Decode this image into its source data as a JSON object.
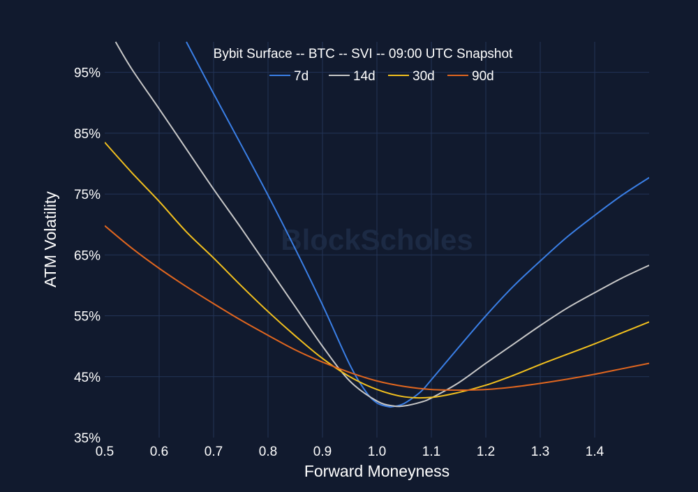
{
  "chart_data": {
    "type": "line",
    "title": "Bybit Surface -- BTC -- SVI -- 09:00 UTC Snapshot",
    "xlabel": "Forward Moneyness",
    "ylabel": "ATM Volatility",
    "xlim": [
      0.5,
      1.5
    ],
    "ylim": [
      35,
      100
    ],
    "x_ticks": [
      0.5,
      0.6,
      0.7,
      0.8,
      0.9,
      1.0,
      1.1,
      1.2,
      1.3,
      1.4
    ],
    "x_tick_labels": [
      "0.5",
      "0.6",
      "0.7",
      "0.8",
      "0.9",
      "1.0",
      "1.1",
      "1.2",
      "1.3",
      "1.4"
    ],
    "y_ticks": [
      35,
      45,
      55,
      65,
      75,
      85,
      95
    ],
    "y_tick_labels": [
      "35%",
      "45%",
      "55%",
      "65%",
      "75%",
      "85%",
      "95%"
    ],
    "grid": true,
    "legend_position": "top-center",
    "watermark": "BlockScholes",
    "colors": {
      "background": "#111a2e",
      "grid": "#233457",
      "text": "#ffffff"
    },
    "series": [
      {
        "name": "7d",
        "color": "#3a7fe6",
        "x": [
          0.65,
          0.7,
          0.75,
          0.8,
          0.85,
          0.9,
          0.95,
          0.98,
          1.0,
          1.02,
          1.03,
          1.05,
          1.08,
          1.1,
          1.15,
          1.2,
          1.25,
          1.3,
          1.35,
          1.4,
          1.45,
          1.5
        ],
        "y": [
          100,
          91.5,
          83.2,
          74.8,
          66.0,
          56.8,
          47.0,
          42.5,
          40.7,
          40.1,
          40.1,
          40.6,
          42.5,
          44.5,
          49.8,
          55.0,
          59.8,
          64.0,
          68.0,
          71.5,
          74.8,
          77.7
        ]
      },
      {
        "name": "14d",
        "color": "#c8c8c8",
        "x": [
          0.52,
          0.55,
          0.6,
          0.65,
          0.7,
          0.75,
          0.8,
          0.85,
          0.9,
          0.95,
          1.0,
          1.03,
          1.05,
          1.08,
          1.1,
          1.15,
          1.2,
          1.25,
          1.3,
          1.35,
          1.4,
          1.45,
          1.5
        ],
        "y": [
          100,
          95.5,
          89.0,
          82.4,
          75.8,
          69.5,
          63.0,
          56.5,
          50.0,
          44.3,
          41.0,
          40.2,
          40.2,
          40.8,
          41.5,
          44.0,
          47.2,
          50.3,
          53.4,
          56.3,
          58.8,
          61.2,
          63.3
        ]
      },
      {
        "name": "30d",
        "color": "#f2c01e",
        "x": [
          0.5,
          0.55,
          0.6,
          0.65,
          0.7,
          0.75,
          0.8,
          0.85,
          0.9,
          0.95,
          1.0,
          1.05,
          1.1,
          1.15,
          1.2,
          1.25,
          1.3,
          1.35,
          1.4,
          1.45,
          1.5
        ],
        "y": [
          83.5,
          78.5,
          73.8,
          68.8,
          64.5,
          60.0,
          55.7,
          51.7,
          48.0,
          45.0,
          42.9,
          41.7,
          41.6,
          42.4,
          43.6,
          45.2,
          47.0,
          48.7,
          50.4,
          52.2,
          54.0
        ]
      },
      {
        "name": "90d",
        "color": "#e0661f",
        "x": [
          0.5,
          0.55,
          0.6,
          0.65,
          0.7,
          0.75,
          0.8,
          0.85,
          0.9,
          0.95,
          1.0,
          1.05,
          1.1,
          1.15,
          1.2,
          1.25,
          1.3,
          1.35,
          1.4,
          1.45,
          1.5
        ],
        "y": [
          69.8,
          66.1,
          62.8,
          59.8,
          57.0,
          54.3,
          51.8,
          49.4,
          47.4,
          45.7,
          44.3,
          43.4,
          42.9,
          42.8,
          42.9,
          43.3,
          43.9,
          44.6,
          45.4,
          46.3,
          47.2
        ]
      }
    ]
  }
}
